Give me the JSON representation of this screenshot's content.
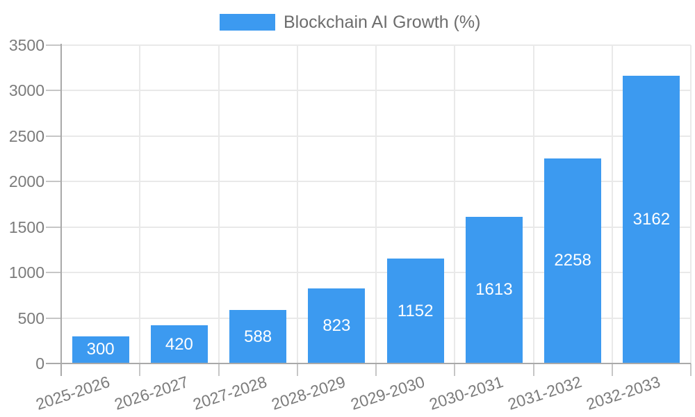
{
  "legend": {
    "label": "Blockchain AI Growth (%)"
  },
  "chart_data": {
    "type": "bar",
    "title": "Blockchain AI Growth (%)",
    "categories": [
      "2025-2026",
      "2026-2027",
      "2027-2028",
      "2028-2029",
      "2029-2030",
      "2030-2031",
      "2031-2032",
      "2032-2033"
    ],
    "series": [
      {
        "name": "Blockchain AI Growth (%)",
        "values": [
          300,
          420,
          588,
          823,
          1152,
          1613,
          2258,
          3162
        ]
      }
    ],
    "value_labels": [
      "300",
      "420",
      "588",
      "823",
      "1152",
      "1613",
      "2258",
      "3162"
    ],
    "xlabel": "",
    "ylabel": "",
    "ylim": [
      0,
      3500
    ],
    "ytick_step": 500,
    "ytick_labels": [
      "0",
      "500",
      "1000",
      "1500",
      "2000",
      "2500",
      "3000",
      "3500"
    ],
    "grid": true,
    "legend_position": "top-center",
    "x_label_rotation_deg": -18,
    "colors": {
      "bar": "#3c9af0",
      "value_label": "#ffffff",
      "axis": "#a9a9a9",
      "grid": "#e9e9e9",
      "tick": "#c6c6c6",
      "axis_label": "#7b7b7b",
      "legend_text": "#6d6d6d",
      "background": "#ffffff"
    }
  }
}
